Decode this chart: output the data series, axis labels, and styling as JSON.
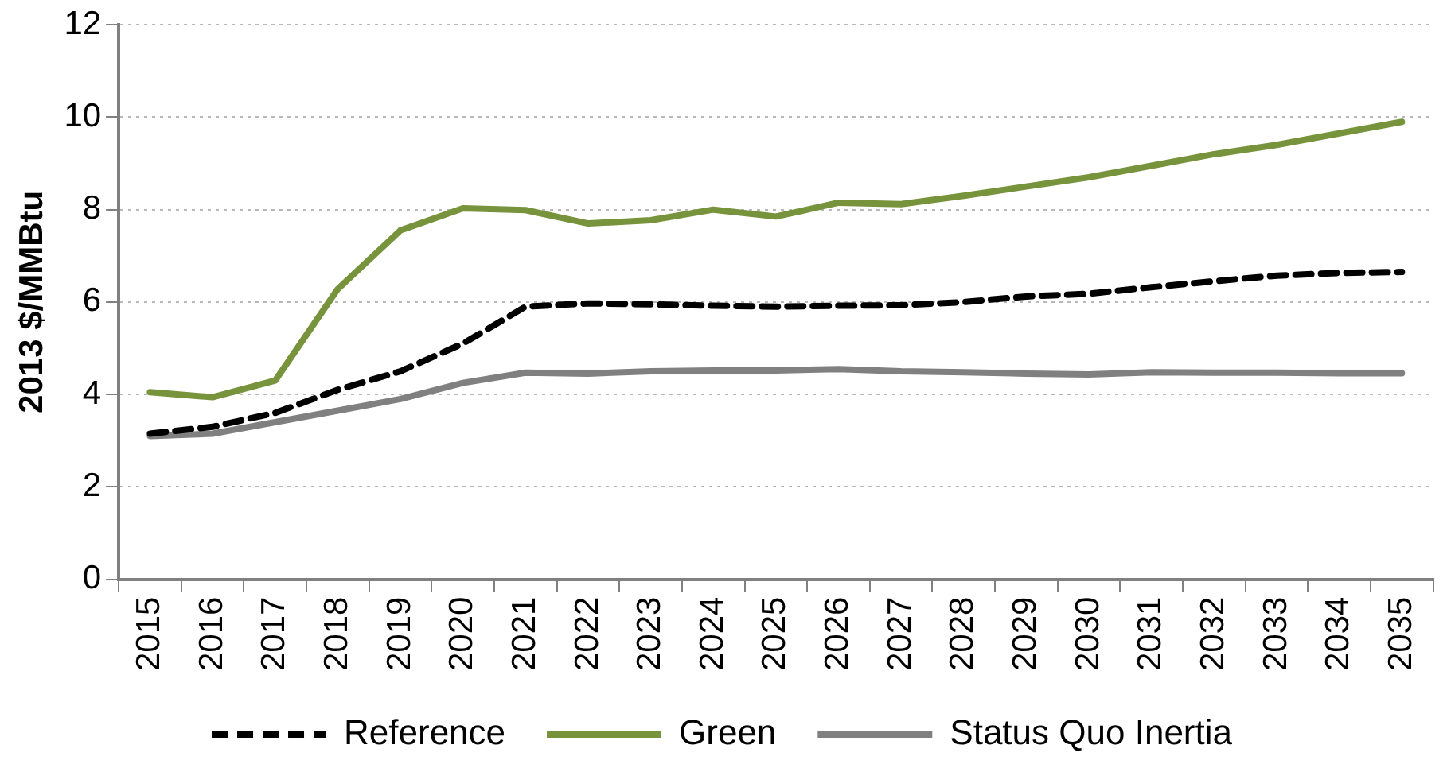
{
  "chart_data": {
    "type": "line",
    "ylabel": "2013 $/MMBtu",
    "categories": [
      "2015",
      "2016",
      "2017",
      "2018",
      "2019",
      "2020",
      "2021",
      "2022",
      "2023",
      "2024",
      "2025",
      "2026",
      "2027",
      "2028",
      "2029",
      "2030",
      "2031",
      "2032",
      "2033",
      "2034",
      "2035"
    ],
    "series": [
      {
        "name": "Reference",
        "color": "#000000",
        "line_style": "dashed",
        "values": [
          3.15,
          3.3,
          3.6,
          4.1,
          4.5,
          5.1,
          5.9,
          5.97,
          5.95,
          5.92,
          5.9,
          5.92,
          5.93,
          6.0,
          6.12,
          6.18,
          6.32,
          6.45,
          6.57,
          6.63,
          6.65
        ]
      },
      {
        "name": "Green",
        "color": "#77933c",
        "line_style": "solid",
        "values": [
          4.05,
          3.94,
          4.3,
          6.28,
          7.55,
          8.03,
          7.99,
          7.7,
          7.77,
          8.0,
          7.85,
          8.15,
          8.12,
          8.3,
          8.5,
          8.7,
          8.95,
          9.2,
          9.4,
          9.65,
          9.9
        ]
      },
      {
        "name": "Status Quo Inertia",
        "color": "#808080",
        "line_style": "solid",
        "values": [
          3.1,
          3.15,
          3.4,
          3.65,
          3.9,
          4.25,
          4.47,
          4.45,
          4.5,
          4.52,
          4.52,
          4.55,
          4.5,
          4.48,
          4.45,
          4.43,
          4.48,
          4.47,
          4.47,
          4.46,
          4.46
        ]
      }
    ],
    "ylim": [
      0,
      12
    ],
    "yticks": [
      0,
      2,
      4,
      6,
      8,
      10,
      12
    ],
    "grid": "y",
    "legend": "bottom",
    "marker": "none"
  }
}
